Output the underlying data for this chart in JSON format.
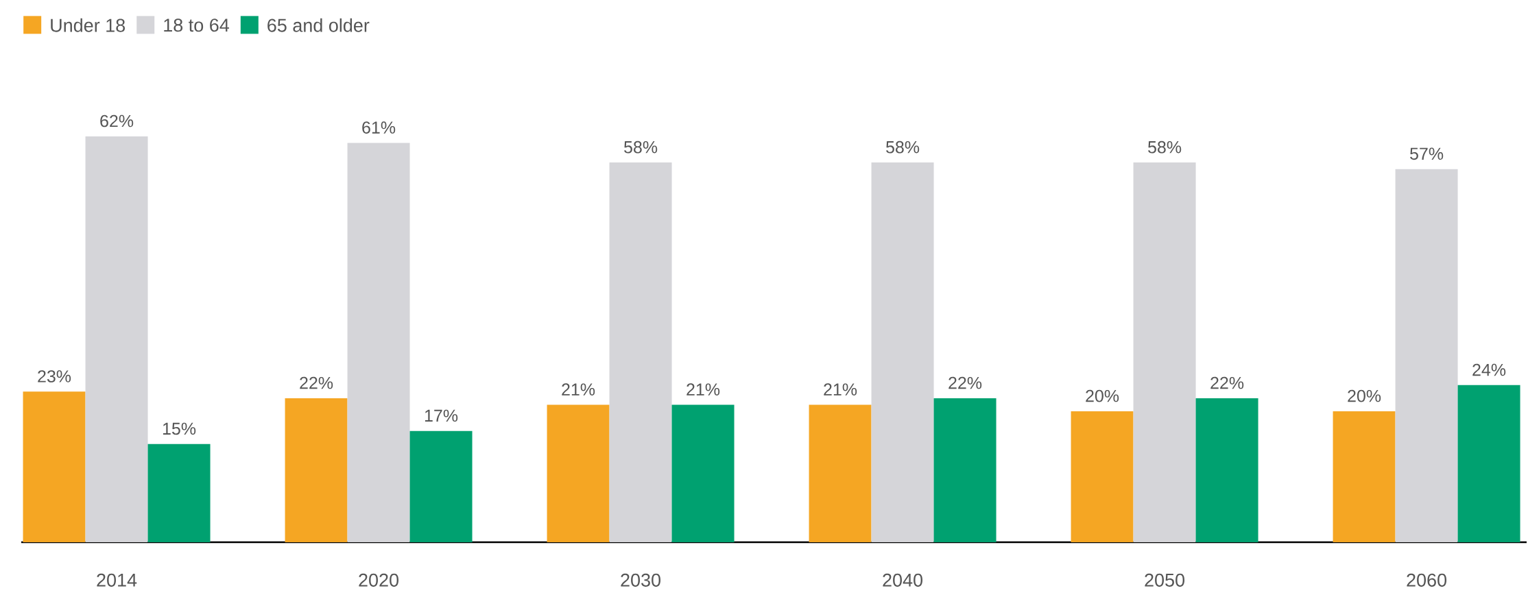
{
  "chart_data": {
    "type": "bar",
    "categories": [
      "2014",
      "2020",
      "2030",
      "2040",
      "2050",
      "2060"
    ],
    "series": [
      {
        "name": "Under 18",
        "color": "#f5a623",
        "values": [
          23,
          22,
          21,
          21,
          20,
          20
        ],
        "value_labels": [
          "23%",
          "22%",
          "21%",
          "21%",
          "20%",
          "20%"
        ]
      },
      {
        "name": "18 to 64",
        "color": "#d5d5d9",
        "values": [
          62,
          61,
          58,
          58,
          58,
          57
        ],
        "value_labels": [
          "62%",
          "61%",
          "58%",
          "58%",
          "58%",
          "57%"
        ]
      },
      {
        "name": "65 and older",
        "color": "#00a170",
        "values": [
          15,
          17,
          21,
          22,
          22,
          24
        ],
        "value_labels": [
          "15%",
          "17%",
          "21%",
          "22%",
          "22%",
          "24%"
        ]
      }
    ],
    "legend": "top left"
  }
}
